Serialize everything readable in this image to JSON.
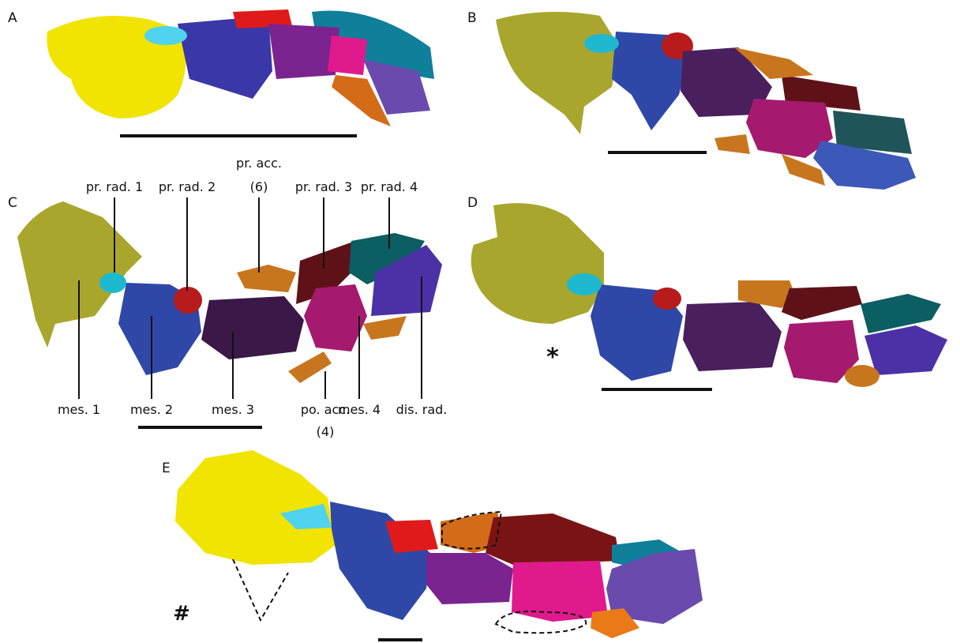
{
  "panel_letters": [
    "A",
    "B",
    "C",
    "D",
    "E"
  ],
  "labels": {
    "top": [
      "pr. rad. 1",
      "pr. rad. 2",
      {
        "lines": [
          "pr. acc.",
          "(6)"
        ]
      },
      "pr. rad. 3",
      "pr. rad. 4"
    ],
    "bottom": [
      "mes. 1",
      "mes. 2",
      "mes. 3",
      {
        "lines": [
          "po. acc.",
          "(4)"
        ]
      },
      "mes. 4",
      "dis. rad."
    ]
  },
  "markers": {
    "D": "*",
    "E": "#"
  }
}
